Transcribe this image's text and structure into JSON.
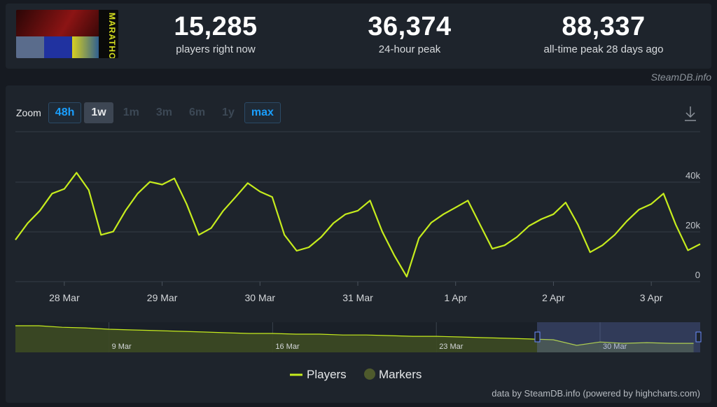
{
  "header": {
    "logo_text": "MARATHON",
    "stats": [
      {
        "value": "15,285",
        "label": "players right now"
      },
      {
        "value": "36,374",
        "label": "24-hour peak"
      },
      {
        "value": "88,337",
        "label": "all-time peak 28 days ago"
      }
    ],
    "credit": "SteamDB.info"
  },
  "zoom": {
    "label": "Zoom",
    "buttons": [
      "48h",
      "1w",
      "1m",
      "3m",
      "6m",
      "1y",
      "max"
    ]
  },
  "chart_data": [
    {
      "type": "line",
      "categories": [
        null,
        null,
        null,
        null,
        "28 Mar",
        null,
        null,
        null,
        null,
        null,
        null,
        null,
        "29 Mar",
        null,
        null,
        null,
        null,
        null,
        null,
        null,
        "30 Mar",
        null,
        null,
        null,
        null,
        null,
        null,
        null,
        "31 Mar",
        null,
        null,
        null,
        null,
        null,
        null,
        null,
        "1 Apr",
        null,
        null,
        null,
        null,
        null,
        null,
        null,
        "2 Apr",
        null,
        null,
        null,
        null,
        null,
        null,
        null,
        "3 Apr",
        null,
        null,
        null,
        null
      ],
      "series": [
        {
          "name": "Players",
          "color": "#c6ec1d",
          "values": [
            16800,
            23500,
            28500,
            35400,
            37300,
            43800,
            36800,
            18800,
            20100,
            28500,
            35400,
            40100,
            39000,
            41500,
            31200,
            18800,
            21500,
            28500,
            34000,
            39600,
            36200,
            34000,
            18800,
            12400,
            13800,
            17900,
            23500,
            27100,
            28500,
            32600,
            20100,
            10400,
            2000,
            17500,
            23700,
            27100,
            29800,
            32600,
            22900,
            13200,
            14600,
            17900,
            22400,
            25100,
            27100,
            31800,
            22900,
            11800,
            14600,
            18800,
            24300,
            29000,
            31200,
            35400,
            22900,
            12600,
            15100
          ]
        }
      ],
      "markers_legend": {
        "name": "Markers",
        "color": "#4e5a2c"
      },
      "ylim": [
        0,
        60000
      ],
      "yticks": [
        0,
        {
          "value": 20000,
          "label": "20k"
        },
        {
          "value": 40000,
          "label": "40k"
        }
      ],
      "grid": true
    },
    {
      "type": "area",
      "categories": [
        null,
        null,
        null,
        null,
        "9 Mar",
        null,
        null,
        null,
        null,
        null,
        null,
        "16 Mar",
        null,
        null,
        null,
        null,
        null,
        null,
        "23 Mar",
        null,
        null,
        null,
        null,
        null,
        null,
        "30 Mar",
        null,
        null,
        null,
        null
      ],
      "values": [
        79500,
        79500,
        75000,
        73000,
        69000,
        67000,
        65000,
        63000,
        61000,
        58600,
        56500,
        56500,
        54400,
        54400,
        52000,
        52000,
        50000,
        48000,
        48000,
        46000,
        44000,
        42000,
        40000,
        37700,
        21000,
        31000,
        27000,
        29000,
        27000,
        27000
      ],
      "color": "#c6ec1d",
      "ylim": [
        0,
        90000
      ]
    }
  ],
  "footer": "data by SteamDB.info (powered by highcharts.com)"
}
